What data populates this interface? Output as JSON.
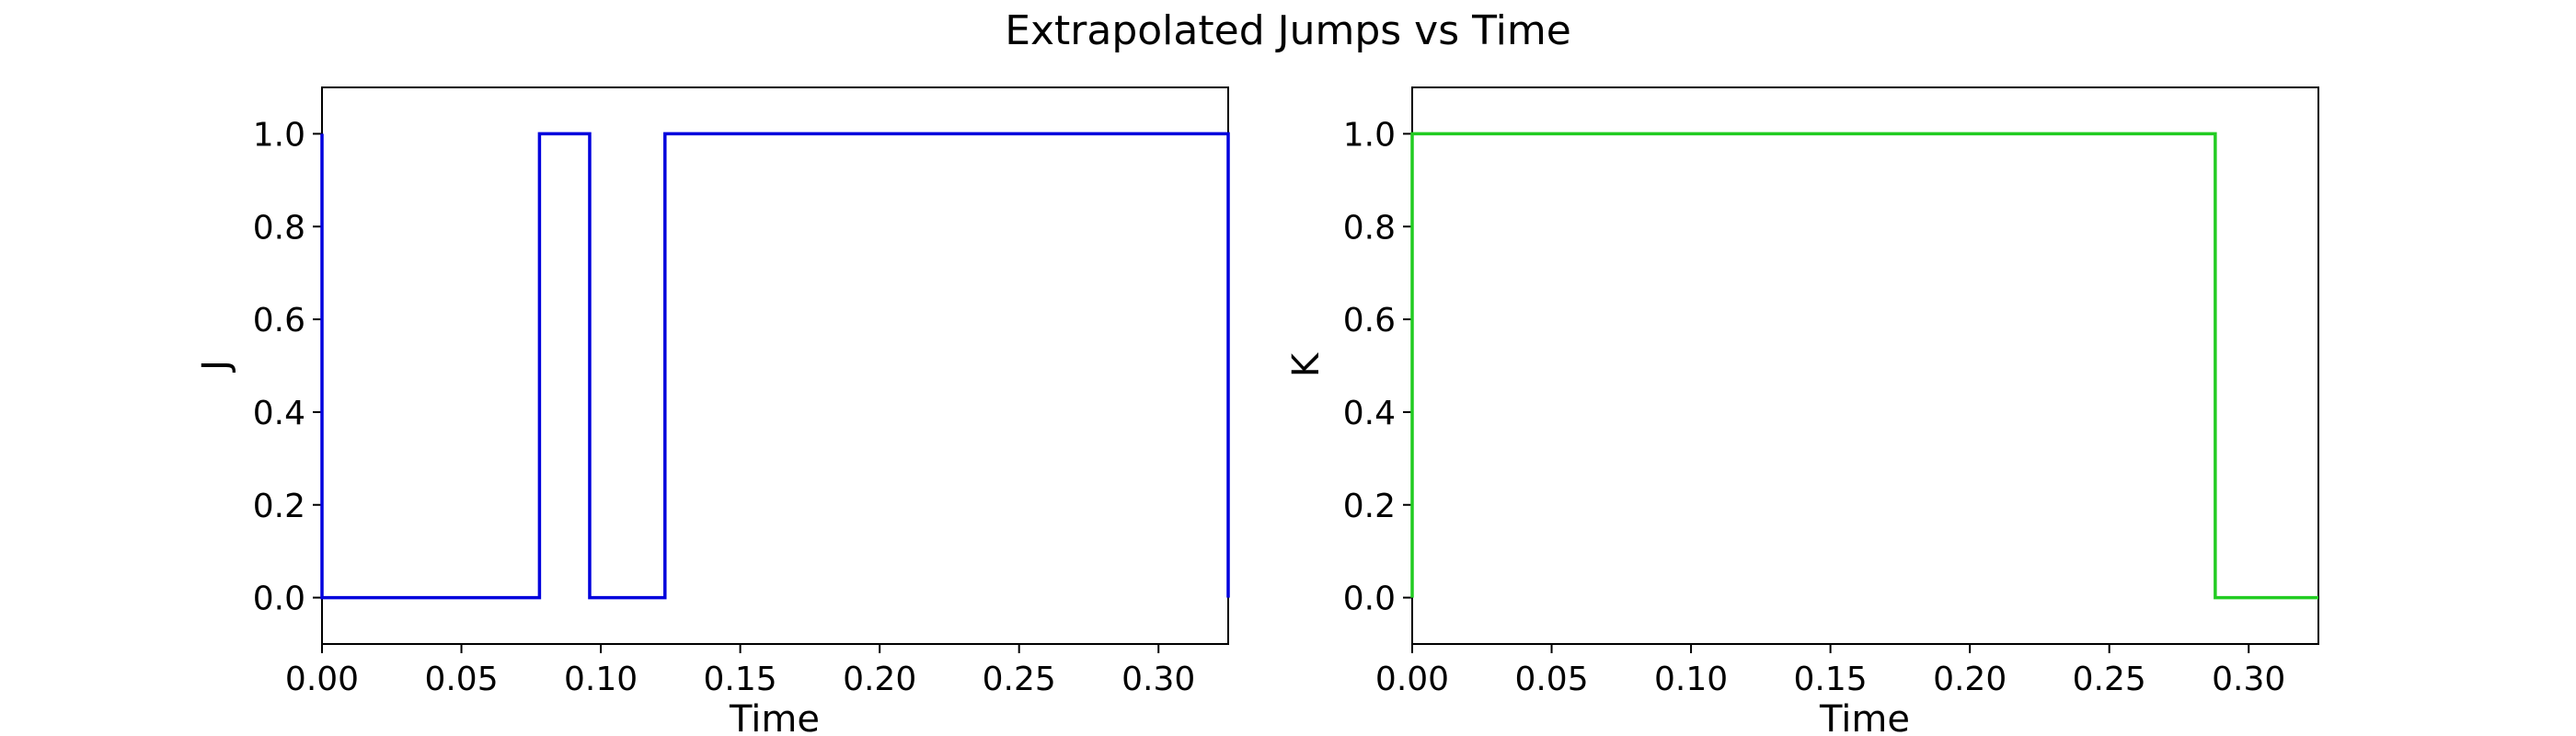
{
  "figure": {
    "title": "Extrapolated Jumps vs Time"
  },
  "chart_data": [
    {
      "type": "line",
      "step": true,
      "xlabel": "Time",
      "ylabel": "J",
      "xlim": [
        0.0,
        0.325
      ],
      "ylim": [
        -0.1,
        1.1
      ],
      "xticks": [
        "0.00",
        "0.05",
        "0.10",
        "0.15",
        "0.20",
        "0.25",
        "0.30"
      ],
      "yticks": [
        "0.0",
        "0.2",
        "0.4",
        "0.6",
        "0.8",
        "1.0"
      ],
      "grid": false,
      "series": [
        {
          "color": "#0000dd",
          "x": [
            0.0,
            0.0,
            0.078,
            0.078,
            0.096,
            0.096,
            0.123,
            0.123,
            0.325,
            0.325
          ],
          "y": [
            1.0,
            0.0,
            0.0,
            1.0,
            1.0,
            0.0,
            0.0,
            1.0,
            1.0,
            0.0
          ]
        }
      ]
    },
    {
      "type": "line",
      "step": true,
      "xlabel": "Time",
      "ylabel": "K",
      "xlim": [
        0.0,
        0.325
      ],
      "ylim": [
        -0.1,
        1.1
      ],
      "xticks": [
        "0.00",
        "0.05",
        "0.10",
        "0.15",
        "0.20",
        "0.25",
        "0.30"
      ],
      "yticks": [
        "0.0",
        "0.2",
        "0.4",
        "0.6",
        "0.8",
        "1.0"
      ],
      "grid": false,
      "series": [
        {
          "color": "#22cc22",
          "x": [
            0.0,
            0.0,
            0.288,
            0.288,
            0.325
          ],
          "y": [
            0.0,
            1.0,
            1.0,
            0.0,
            0.0
          ]
        }
      ]
    }
  ]
}
